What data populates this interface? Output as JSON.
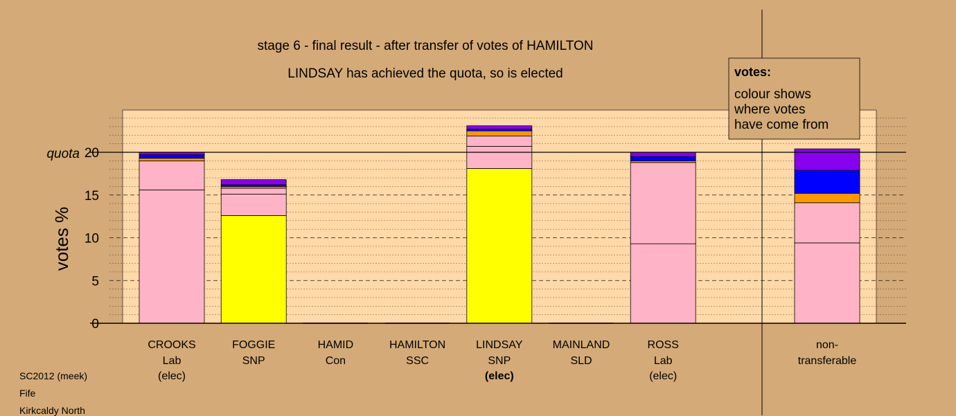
{
  "chart_data": {
    "type": "bar",
    "stacked": true,
    "title": "stage 6 - final result - after transfer of votes of HAMILTON",
    "subtitle": "LINDSAY has achieved the quota, so is elected",
    "ylabel": "votes %",
    "ylim": [
      0,
      25
    ],
    "yticks": [
      0,
      5,
      10,
      15,
      20
    ],
    "quota": 20,
    "quota_label": "quota",
    "legend": {
      "title": "votes:",
      "lines": [
        "colour shows",
        "where votes",
        "have come from"
      ],
      "placement": "top-right"
    },
    "colors": {
      "lab": "#ffb3c6",
      "snp": "#ffff00",
      "orange": "#ff9900",
      "blue": "#0000ff",
      "purple": "#8800ee",
      "plot_bg": "#ffd9a8",
      "page_bg": "#d4aa78"
    },
    "categories": [
      {
        "name": "CROOKS",
        "party": "Lab",
        "status": "(elec)",
        "status_bold": false,
        "segments": [
          {
            "value": 15.6,
            "color": "lab"
          },
          {
            "value": 3.4,
            "color": "lab"
          },
          {
            "value": 0.3,
            "color": "orange"
          },
          {
            "value": 0.4,
            "color": "blue"
          },
          {
            "value": 0.3,
            "color": "purple"
          }
        ]
      },
      {
        "name": "FOGGIE",
        "party": "SNP",
        "status": "",
        "status_bold": false,
        "segments": [
          {
            "value": 12.6,
            "color": "snp"
          },
          {
            "value": 2.5,
            "color": "lab"
          },
          {
            "value": 0.7,
            "color": "lab"
          },
          {
            "value": 0.2,
            "color": "orange"
          },
          {
            "value": 0.2,
            "color": "blue"
          },
          {
            "value": 0.6,
            "color": "purple"
          }
        ]
      },
      {
        "name": "HAMID",
        "party": "Con",
        "status": "",
        "status_bold": false,
        "segments": []
      },
      {
        "name": "HAMILTON",
        "party": "SSC",
        "status": "",
        "status_bold": false,
        "segments": []
      },
      {
        "name": "LINDSAY",
        "party": "SNP",
        "status": "(elec)",
        "status_bold": true,
        "segments": [
          {
            "value": 18.1,
            "color": "snp"
          },
          {
            "value": 2.6,
            "color": "lab"
          },
          {
            "value": 1.2,
            "color": "lab"
          },
          {
            "value": 0.6,
            "color": "orange"
          },
          {
            "value": 0.2,
            "color": "blue"
          },
          {
            "value": 0.4,
            "color": "purple"
          }
        ]
      },
      {
        "name": "MAINLAND",
        "party": "SLD",
        "status": "",
        "status_bold": false,
        "segments": []
      },
      {
        "name": "ROSS",
        "party": "Lab",
        "status": "(elec)",
        "status_bold": false,
        "segments": [
          {
            "value": 9.3,
            "color": "lab"
          },
          {
            "value": 9.5,
            "color": "lab"
          },
          {
            "value": 0.2,
            "color": "orange"
          },
          {
            "value": 0.5,
            "color": "blue"
          },
          {
            "value": 0.5,
            "color": "purple"
          }
        ]
      }
    ],
    "nontransferable": {
      "label_lines": [
        "non-",
        "transferable"
      ],
      "segments": [
        {
          "value": 9.4,
          "color": "lab"
        },
        {
          "value": 4.7,
          "color": "lab"
        },
        {
          "value": 1.1,
          "color": "orange"
        },
        {
          "value": 2.7,
          "color": "blue"
        },
        {
          "value": 2.5,
          "color": "purple"
        }
      ]
    }
  },
  "footer": {
    "line1": "SC2012 (meek)",
    "line2": "Fife",
    "line3": "Kirkcaldy North"
  }
}
